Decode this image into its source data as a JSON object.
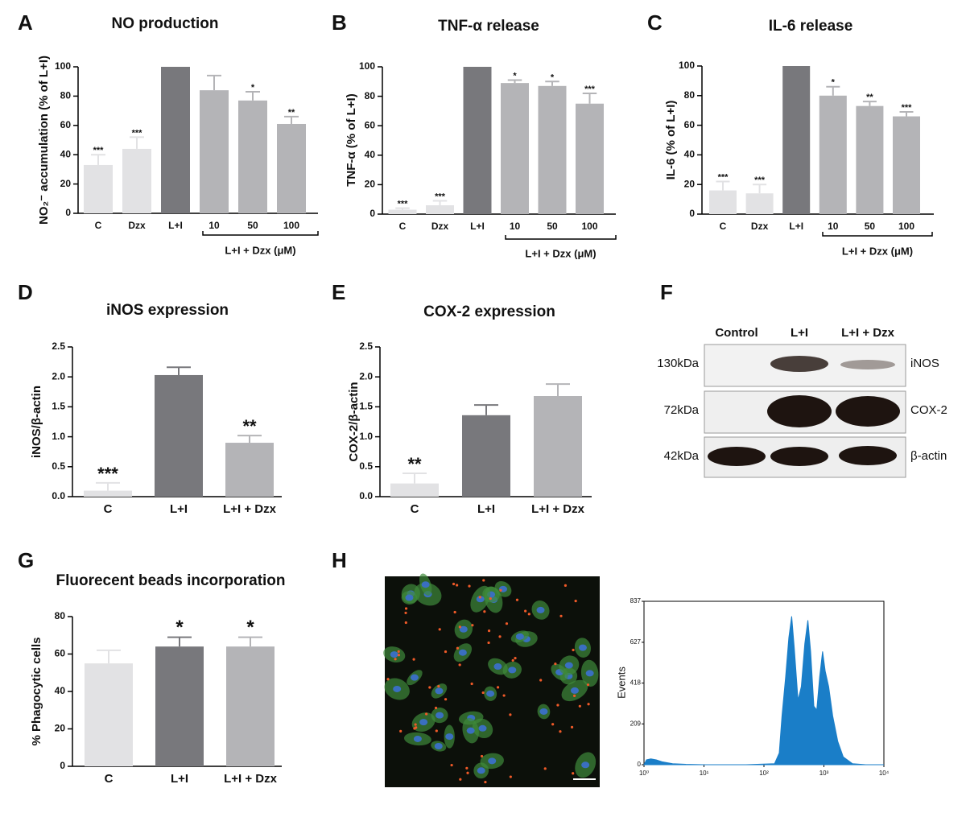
{
  "chart_data": [
    {
      "type": "bar",
      "panel": "A",
      "title": "NO production",
      "ylabel": "NO₂⁻ accumulation (% of L+I)",
      "categories": [
        "C",
        "Dzx",
        "L+I",
        "10",
        "50",
        "100"
      ],
      "values": [
        33,
        44,
        100,
        84,
        77,
        61
      ],
      "errors": [
        7,
        8,
        null,
        10,
        6,
        5
      ],
      "annotations": [
        "***",
        "***",
        null,
        null,
        "*",
        "**"
      ],
      "bracket_label": "L+I + Dzx (μM)",
      "colors": [
        "#e2e2e4",
        "#e2e2e4",
        "#78787c",
        "#b4b4b7",
        "#b4b4b7",
        "#b4b4b7"
      ],
      "ylim": [
        0,
        100
      ],
      "yticks": [
        0,
        20,
        40,
        60,
        80,
        100
      ]
    },
    {
      "type": "bar",
      "panel": "B",
      "title": "TNF-α release",
      "ylabel": "TNF-α (% of L+I)",
      "categories": [
        "C",
        "Dzx",
        "L+I",
        "10",
        "50",
        "100"
      ],
      "values": [
        3,
        6,
        100,
        89,
        87,
        75
      ],
      "errors": [
        1,
        3,
        null,
        2,
        3,
        7
      ],
      "annotations": [
        "***",
        "***",
        null,
        "*",
        "*",
        "***"
      ],
      "bracket_label": "L+I + Dzx (μM)",
      "colors": [
        "#e2e2e4",
        "#e2e2e4",
        "#78787c",
        "#b4b4b7",
        "#b4b4b7",
        "#b4b4b7"
      ],
      "ylim": [
        0,
        100
      ],
      "yticks": [
        0,
        20,
        40,
        60,
        80,
        100
      ]
    },
    {
      "type": "bar",
      "panel": "C",
      "title": "IL-6 release",
      "ylabel": "IL-6 (% of L+I)",
      "categories": [
        "C",
        "Dzx",
        "L+I",
        "10",
        "50",
        "100"
      ],
      "values": [
        16,
        14,
        100,
        80,
        73,
        66
      ],
      "errors": [
        6,
        6,
        null,
        6,
        3,
        3
      ],
      "annotations": [
        "***",
        "***",
        null,
        "*",
        "**",
        "***"
      ],
      "bracket_label": "L+I + Dzx (μM)",
      "colors": [
        "#e2e2e4",
        "#e2e2e4",
        "#78787c",
        "#b4b4b7",
        "#b4b4b7",
        "#b4b4b7"
      ],
      "ylim": [
        0,
        100
      ],
      "yticks": [
        0,
        20,
        40,
        60,
        80,
        100
      ]
    },
    {
      "type": "bar",
      "panel": "D",
      "title": "iNOS expression",
      "ylabel": "iNOS/β-actin",
      "categories": [
        "C",
        "L+I",
        "L+I + Dzx"
      ],
      "values": [
        0.1,
        2.03,
        0.9
      ],
      "errors": [
        0.13,
        0.13,
        0.12
      ],
      "annotations": [
        "***",
        null,
        "**"
      ],
      "colors": [
        "#e2e2e4",
        "#78787c",
        "#b4b4b7"
      ],
      "ylim": [
        0,
        2.5
      ],
      "yticks": [
        {
          "value": 0,
          "label": "0.0"
        },
        0.5,
        {
          "value": 1,
          "label": "1.0"
        },
        1.5,
        {
          "value": 2,
          "label": "2.0"
        },
        2.5
      ]
    },
    {
      "type": "bar",
      "panel": "E",
      "title": "COX-2 expression",
      "ylabel": "COX-2/β-actin",
      "categories": [
        "C",
        "L+I",
        "L+I + Dzx"
      ],
      "values": [
        0.22,
        1.36,
        1.68
      ],
      "errors": [
        0.17,
        0.17,
        0.2
      ],
      "annotations": [
        "**",
        null,
        null
      ],
      "colors": [
        "#e2e2e4",
        "#78787c",
        "#b4b4b7"
      ],
      "ylim": [
        0,
        2.5
      ],
      "yticks": [
        {
          "value": 0,
          "label": "0.0"
        },
        0.5,
        {
          "value": 1,
          "label": "1.0"
        },
        1.5,
        {
          "value": 2,
          "label": "2.0"
        },
        2.5
      ]
    },
    {
      "type": "bar",
      "panel": "G",
      "title": "Fluorecent beads incorporation",
      "ylabel": "% Phagocytic cells",
      "categories": [
        "C",
        "L+I",
        "L+I + Dzx"
      ],
      "values": [
        55,
        64,
        64
      ],
      "errors": [
        7,
        5,
        5
      ],
      "annotations": [
        null,
        "*",
        "*"
      ],
      "colors": [
        "#e2e2e4",
        "#78787c",
        "#b4b4b7"
      ],
      "ylim": [
        0,
        80
      ],
      "yticks": [
        0,
        20,
        40,
        60,
        80
      ]
    },
    {
      "type": "area",
      "panel": "H",
      "ylabel": "Events",
      "color": "#1a7ec8",
      "xscale": "log",
      "x": [
        1,
        1.1,
        1.3,
        1.6,
        2,
        3,
        5,
        10,
        50,
        150,
        180,
        200,
        230,
        260,
        290,
        320,
        370,
        420,
        480,
        540,
        600,
        680,
        760,
        850,
        950,
        1050,
        1200,
        1400,
        1700,
        2100,
        3000,
        5000,
        10000
      ],
      "values": [
        0,
        25,
        30,
        25,
        15,
        5,
        2,
        0,
        0,
        5,
        60,
        250,
        450,
        650,
        760,
        600,
        330,
        400,
        620,
        740,
        580,
        300,
        280,
        450,
        580,
        480,
        400,
        250,
        120,
        40,
        5,
        0,
        0
      ],
      "xlim": [
        1,
        10000
      ],
      "xticks": [
        {
          "value": 1,
          "label": "10⁰"
        },
        {
          "value": 10,
          "label": "10¹"
        },
        {
          "value": 100,
          "label": "10²"
        },
        {
          "value": 1000,
          "label": "10³"
        },
        {
          "value": 10000,
          "label": "10⁴"
        }
      ],
      "ylim": [
        0,
        837
      ],
      "yticks": [
        0,
        209,
        418,
        627,
        837
      ]
    }
  ],
  "blot": {
    "panel": "F",
    "columns": [
      "Control",
      "L+I",
      "L+I + Dzx"
    ],
    "rows": [
      {
        "weight": "130kDa",
        "protein": "iNOS"
      },
      {
        "weight": "72kDa",
        "protein": "COX-2"
      },
      {
        "weight": "42kDa",
        "protein": "β-actin"
      }
    ]
  }
}
